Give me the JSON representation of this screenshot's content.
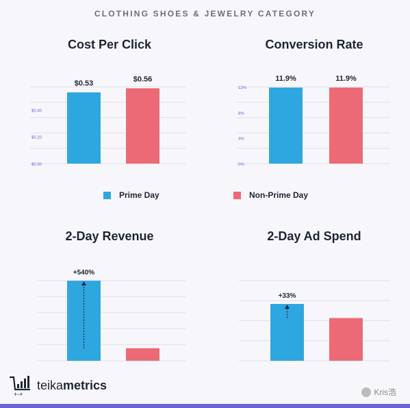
{
  "header": "CLOTHING SHOES & JEWELRY CATEGORY",
  "colors": {
    "prime": "#2ea7e0",
    "non_prime": "#ec6a76",
    "grid": "#dde0ea",
    "tick": "#6a64d4"
  },
  "legend": {
    "prime": "Prime Day",
    "non_prime": "Non-Prime Day"
  },
  "brand": {
    "prefix": "teika",
    "bold": "metrics",
    "icon": "bar-chart-cart-icon"
  },
  "watermark": {
    "text": "Kris浩",
    "icon": "wechat-icon"
  },
  "chart_data": [
    {
      "type": "bar",
      "title": "Cost Per Click",
      "categories": [
        "Prime Day",
        "Non-Prime Day"
      ],
      "values": [
        0.53,
        0.56
      ],
      "data_labels": [
        "$0.53",
        "$0.56"
      ],
      "ylim": [
        0,
        0.57
      ],
      "yticks": [
        0,
        0.2,
        0.4
      ],
      "ytick_labels": [
        "$0.00",
        "$0.20",
        "$0.40"
      ],
      "grid": true
    },
    {
      "type": "bar",
      "title": "Conversion Rate",
      "categories": [
        "Prime Day",
        "Non-Prime Day"
      ],
      "values": [
        11.9,
        11.9
      ],
      "data_labels": [
        "11.9%",
        "11.9%"
      ],
      "ylim": [
        0,
        12
      ],
      "yticks": [
        0,
        4,
        8,
        12
      ],
      "ytick_labels": [
        "0%",
        "4%",
        "8%",
        "12%"
      ],
      "grid": true
    },
    {
      "type": "bar",
      "title": "2-Day Revenue",
      "categories": [
        "Prime Day",
        "Non-Prime Day"
      ],
      "values": [
        6.4,
        1
      ],
      "annotation": "+540%",
      "ylim": [
        0,
        6.4
      ],
      "grid": true
    },
    {
      "type": "bar",
      "title": "2-Day Ad Spend",
      "categories": [
        "Prime Day",
        "Non-Prime Day"
      ],
      "values": [
        1.33,
        1
      ],
      "annotation": "+33%",
      "ylim": [
        0,
        1.33
      ],
      "grid": true
    }
  ]
}
